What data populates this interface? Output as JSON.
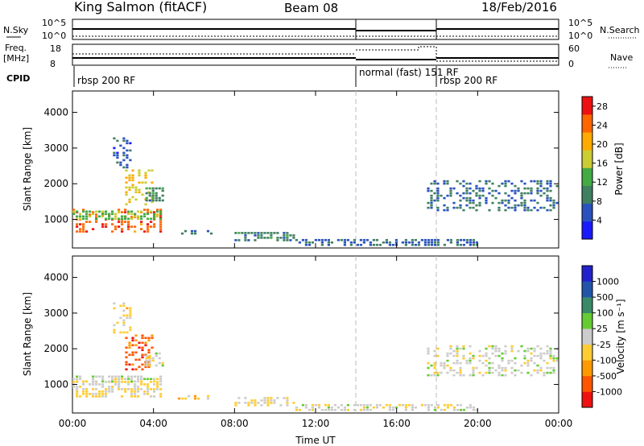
{
  "header": {
    "station": "King Salmon (fitACF)",
    "beam": "Beam 08",
    "date": "18/Feb/2016"
  },
  "summary": {
    "nsky_label": "N.Sky",
    "nsearch_label": "N.Search",
    "freq_label": "Freq.",
    "freq_unit": "[MHz]",
    "nave_label": "Nave",
    "cpid_label": "CPID",
    "noise_ticks": [
      "10^5",
      "10^0"
    ],
    "freq_ticks": [
      "18",
      "8"
    ],
    "nave_ticks": [
      "60",
      "0"
    ],
    "cpid_segments": [
      {
        "label": "rbsp 200 RF",
        "start_h": 0,
        "end_h": 14
      },
      {
        "label": "normal (fast) 151 RF",
        "start_h": 14,
        "end_h": 18
      },
      {
        "label": "rbsp 200 RF",
        "start_h": 18,
        "end_h": 24
      }
    ]
  },
  "colors": {
    "power": [
      "#1a1aff",
      "#2a52be",
      "#3f8060",
      "#44aa44",
      "#cccc33",
      "#ffaa00",
      "#ff6600",
      "#ee1111"
    ],
    "velocity": [
      "#ee1111",
      "#ff5500",
      "#ff9900",
      "#ffcc33",
      "#cccccc",
      "#66cc33",
      "#3a8a6a",
      "#2255aa",
      "#2222cc"
    ]
  },
  "chart_data": [
    {
      "type": "heatmap",
      "title": "Power",
      "ylabel": "Slant Range [km]",
      "xlabel": "",
      "xlim_hours": [
        0,
        24
      ],
      "ylim": [
        200,
        4600
      ],
      "y_ticks": [
        "1000",
        "2000",
        "3000",
        "4000"
      ],
      "x_ticks": [
        "00:00",
        "04:00",
        "08:00",
        "12:00",
        "16:00",
        "20:00",
        "00:00"
      ],
      "colorbar_label": "Power [dB]",
      "colorbar_ticks": [
        "4",
        "8",
        "12",
        "16",
        "20",
        "24",
        "28"
      ],
      "colorbar_range": [
        0,
        30
      ],
      "grid": false,
      "echo_regions": [
        {
          "t": [
            0.0,
            4.4
          ],
          "r": [
            600,
            1300
          ],
          "value": 25
        },
        {
          "t": [
            0.0,
            4.4
          ],
          "r": [
            950,
            1250
          ],
          "value": 14
        },
        {
          "t": [
            2.6,
            4.0
          ],
          "r": [
            1400,
            2400
          ],
          "value": 18
        },
        {
          "t": [
            3.6,
            4.6
          ],
          "r": [
            1500,
            1900
          ],
          "value": 10
        },
        {
          "t": [
            2.0,
            3.0
          ],
          "r": [
            2400,
            3300
          ],
          "value": 6
        },
        {
          "t": [
            5.2,
            7.0
          ],
          "r": [
            550,
            700
          ],
          "value": 8
        },
        {
          "t": [
            8.0,
            11.0
          ],
          "r": [
            350,
            650
          ],
          "value": 9
        },
        {
          "t": [
            11.0,
            20.0
          ],
          "r": [
            250,
            450
          ],
          "value": 7
        },
        {
          "t": [
            17.5,
            24.0
          ],
          "r": [
            1250,
            2100
          ],
          "value": 8
        }
      ]
    },
    {
      "type": "heatmap",
      "title": "Velocity",
      "ylabel": "Slant Range [km]",
      "xlabel": "Time UT",
      "xlim_hours": [
        0,
        24
      ],
      "ylim": [
        200,
        4600
      ],
      "y_ticks": [
        "1000",
        "2000",
        "3000",
        "4000"
      ],
      "x_ticks": [
        "00:00",
        "04:00",
        "08:00",
        "12:00",
        "16:00",
        "20:00",
        "00:00"
      ],
      "colorbar_label": "Velocity [m s⁻¹]",
      "colorbar_ticks": [
        "-1000",
        "-500",
        "-100",
        "-25",
        "25",
        "100",
        "500",
        "1000"
      ],
      "colorbar_range": [
        -1200,
        1200
      ],
      "grid": false,
      "echo_regions": [
        {
          "t": [
            0.0,
            4.4
          ],
          "r": [
            600,
            1100
          ],
          "value": -150
        },
        {
          "t": [
            0.0,
            4.4
          ],
          "r": [
            1050,
            1250
          ],
          "value": 0
        },
        {
          "t": [
            2.6,
            4.0
          ],
          "r": [
            1400,
            2400
          ],
          "value": -800
        },
        {
          "t": [
            3.6,
            4.6
          ],
          "r": [
            1500,
            1900
          ],
          "value": 0
        },
        {
          "t": [
            2.0,
            3.0
          ],
          "r": [
            2400,
            3300
          ],
          "value": -200
        },
        {
          "t": [
            5.2,
            7.0
          ],
          "r": [
            550,
            700
          ],
          "value": -250
        },
        {
          "t": [
            8.0,
            11.0
          ],
          "r": [
            350,
            650
          ],
          "value": -100
        },
        {
          "t": [
            11.0,
            20.0
          ],
          "r": [
            250,
            450
          ],
          "value": -40
        },
        {
          "t": [
            17.5,
            24.0
          ],
          "r": [
            1250,
            2100
          ],
          "value": 0
        }
      ]
    }
  ]
}
